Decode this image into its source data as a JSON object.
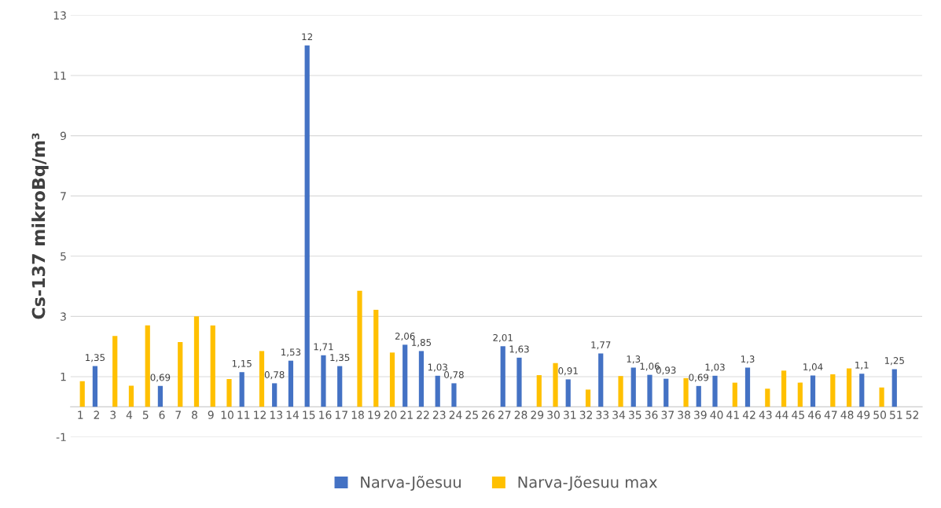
{
  "chart_data": {
    "type": "bar",
    "ylabel": "Cs-137 mikroBq/m³",
    "categories": [
      "1",
      "2",
      "3",
      "4",
      "5",
      "6",
      "7",
      "8",
      "9",
      "10",
      "11",
      "12",
      "13",
      "14",
      "15",
      "16",
      "17",
      "18",
      "19",
      "20",
      "21",
      "22",
      "23",
      "24",
      "25",
      "26",
      "27",
      "28",
      "29",
      "30",
      "31",
      "32",
      "33",
      "34",
      "35",
      "36",
      "37",
      "38",
      "39",
      "40",
      "41",
      "42",
      "43",
      "44",
      "45",
      "46",
      "47",
      "48",
      "49",
      "50",
      "51",
      "52"
    ],
    "series": [
      {
        "name": "Narva-Jõesuu",
        "color": "#4472c4",
        "values": [
          null,
          1.35,
          null,
          null,
          null,
          0.69,
          null,
          null,
          null,
          null,
          1.15,
          null,
          0.78,
          1.53,
          12,
          1.71,
          1.35,
          null,
          null,
          null,
          2.06,
          1.85,
          1.03,
          0.78,
          null,
          null,
          2.01,
          1.63,
          null,
          null,
          0.91,
          null,
          1.77,
          null,
          1.3,
          1.06,
          0.93,
          null,
          0.69,
          1.03,
          null,
          1.3,
          null,
          null,
          null,
          1.04,
          null,
          null,
          1.1,
          null,
          1.25,
          null
        ],
        "value_labels": [
          null,
          "1,35",
          null,
          null,
          null,
          "0,69",
          null,
          null,
          null,
          null,
          "1,15",
          null,
          "0,78",
          "1,53",
          "12",
          "1,71",
          "1,35",
          null,
          null,
          null,
          "2,06",
          "1,85",
          "1,03",
          "0,78",
          null,
          null,
          "2,01",
          "1,63",
          null,
          null,
          "0,91",
          null,
          "1,77",
          null,
          "1,3",
          "1,06",
          "0,93",
          null,
          "0,69",
          "1,03",
          null,
          "1,3",
          null,
          null,
          null,
          "1,04",
          null,
          null,
          "1,1",
          null,
          "1,25",
          null
        ]
      },
      {
        "name": "Narva-Jõesuu max",
        "color": "#ffc000",
        "values": [
          0.85,
          null,
          2.35,
          0.7,
          2.7,
          null,
          2.15,
          3.0,
          2.7,
          0.92,
          null,
          1.85,
          null,
          null,
          null,
          null,
          null,
          3.85,
          3.22,
          1.8,
          null,
          null,
          null,
          null,
          null,
          null,
          null,
          null,
          1.05,
          1.45,
          null,
          0.57,
          null,
          1.02,
          null,
          null,
          null,
          0.95,
          null,
          null,
          0.8,
          null,
          0.6,
          1.2,
          0.8,
          null,
          1.08,
          1.27,
          null,
          0.64,
          null,
          null
        ]
      }
    ],
    "ylim": [
      -1,
      13
    ],
    "yticks": [
      -1,
      1,
      3,
      5,
      7,
      9,
      11,
      13
    ],
    "grid": "y",
    "legend": "bottom"
  }
}
